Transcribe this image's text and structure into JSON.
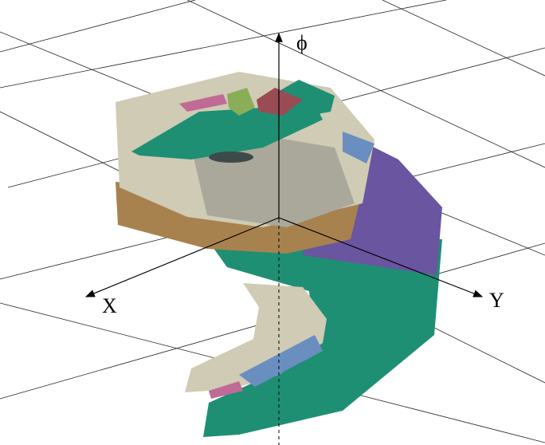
{
  "axes": {
    "z": "ϕ",
    "x": "X",
    "y": "Y"
  }
}
